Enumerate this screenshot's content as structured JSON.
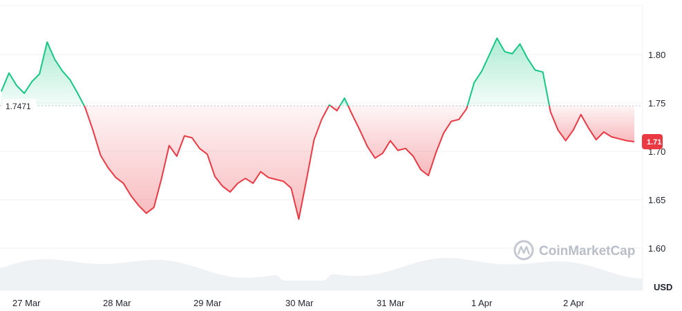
{
  "chart_data": {
    "type": "area",
    "title": "",
    "xlabel": "",
    "ylabel": "",
    "unit": "USD",
    "x_ticks": [
      "27 Mar",
      "28 Mar",
      "29 Mar",
      "30 Mar",
      "31 Mar",
      "1 Apr",
      "2 Apr"
    ],
    "y_ticks": [
      1.6,
      1.65,
      1.7,
      1.75,
      1.8
    ],
    "ylim": [
      1.57,
      1.86
    ],
    "baseline": 1.7471,
    "baseline_label": "1.7471",
    "current_price": 1.71,
    "current_price_label": "1.71",
    "colors": {
      "above": "#16c784",
      "below": "#ea3943",
      "grid": "#eff2f5",
      "volume": "#eff2f5"
    },
    "watermark": "CoinMarketCap",
    "grid": true,
    "series": [
      {
        "x": [
          "26 Mar 21:00",
          "26 Mar 23:00",
          "27 Mar 01:00",
          "27 Mar 03:00",
          "27 Mar 05:00",
          "27 Mar 07:00",
          "27 Mar 09:00",
          "27 Mar 11:00",
          "27 Mar 13:00",
          "27 Mar 15:00",
          "27 Mar 17:00",
          "27 Mar 19:00",
          "27 Mar 21:00",
          "27 Mar 23:00",
          "28 Mar 01:00",
          "28 Mar 03:00",
          "28 Mar 05:00",
          "28 Mar 07:00",
          "28 Mar 09:00",
          "28 Mar 11:00",
          "28 Mar 13:00",
          "28 Mar 15:00",
          "28 Mar 17:00",
          "28 Mar 19:00",
          "28 Mar 21:00",
          "28 Mar 23:00",
          "29 Mar 01:00",
          "29 Mar 03:00",
          "29 Mar 05:00",
          "29 Mar 07:00",
          "29 Mar 09:00",
          "29 Mar 11:00",
          "29 Mar 13:00",
          "29 Mar 15:00",
          "29 Mar 17:00",
          "29 Mar 19:00",
          "29 Mar 21:00",
          "29 Mar 23:00",
          "30 Mar 01:00",
          "30 Mar 03:00",
          "30 Mar 05:00",
          "30 Mar 07:00",
          "30 Mar 09:00",
          "30 Mar 11:00",
          "30 Mar 13:00",
          "30 Mar 15:00",
          "30 Mar 17:00",
          "30 Mar 19:00",
          "30 Mar 21:00",
          "30 Mar 23:00",
          "31 Mar 01:00",
          "31 Mar 03:00",
          "31 Mar 05:00",
          "31 Mar 07:00",
          "31 Mar 09:00",
          "31 Mar 11:00",
          "31 Mar 13:00",
          "31 Mar 15:00",
          "31 Mar 17:00",
          "31 Mar 19:00",
          "31 Mar 21:00",
          "31 Mar 23:00",
          "1 Apr 01:00",
          "1 Apr 03:00",
          "1 Apr 05:00",
          "1 Apr 07:00",
          "1 Apr 09:00",
          "1 Apr 11:00",
          "1 Apr 13:00",
          "1 Apr 15:00",
          "1 Apr 17:00",
          "1 Apr 19:00",
          "1 Apr 21:00",
          "1 Apr 23:00",
          "2 Apr 01:00",
          "2 Apr 03:00",
          "2 Apr 05:00",
          "2 Apr 07:00",
          "2 Apr 09:00",
          "2 Apr 11:00",
          "2 Apr 13:00",
          "2 Apr 15:00",
          "2 Apr 17:00",
          "2 Apr 19:00"
        ],
        "values": [
          1.762,
          1.781,
          1.768,
          1.76,
          1.772,
          1.78,
          1.813,
          1.795,
          1.783,
          1.774,
          1.76,
          1.745,
          1.722,
          1.696,
          1.683,
          1.673,
          1.667,
          1.654,
          1.644,
          1.636,
          1.642,
          1.672,
          1.706,
          1.695,
          1.716,
          1.714,
          1.703,
          1.697,
          1.674,
          1.664,
          1.658,
          1.667,
          1.672,
          1.667,
          1.679,
          1.673,
          1.671,
          1.669,
          1.662,
          1.63,
          1.67,
          1.712,
          1.733,
          1.748,
          1.742,
          1.755,
          1.738,
          1.722,
          1.705,
          1.693,
          1.698,
          1.711,
          1.701,
          1.703,
          1.695,
          1.681,
          1.675,
          1.699,
          1.719,
          1.731,
          1.733,
          1.744,
          1.771,
          1.783,
          1.8,
          1.817,
          1.803,
          1.801,
          1.811,
          1.796,
          1.784,
          1.782,
          1.741,
          1.722,
          1.711,
          1.722,
          1.738,
          1.724,
          1.712,
          1.72,
          1.715,
          1.713,
          1.711,
          1.71
        ]
      }
    ]
  }
}
